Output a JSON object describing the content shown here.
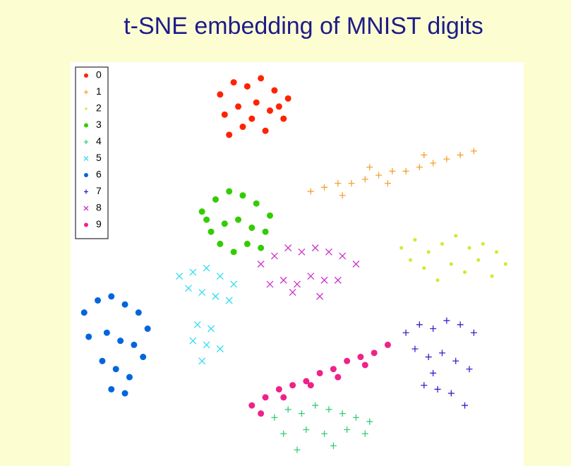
{
  "chart_data": {
    "type": "scatter",
    "title": "t-SNE embedding of MNIST digits",
    "xlim": [
      0,
      100
    ],
    "ylim": [
      0,
      100
    ],
    "series": [
      {
        "name": "0",
        "color": "#ff2200",
        "marker": "o",
        "x": [
          33,
          36,
          39,
          42,
          45,
          48,
          34,
          37,
          41,
          44,
          47,
          38,
          43,
          40,
          35,
          46
        ],
        "values": [
          92,
          95,
          94,
          96,
          93,
          91,
          87,
          89,
          90,
          88,
          86,
          84,
          83,
          86,
          82,
          89
        ]
      },
      {
        "name": "1",
        "color": "#f5a030",
        "marker": "+",
        "x": [
          53,
          56,
          59,
          62,
          65,
          68,
          71,
          74,
          77,
          80,
          83,
          86,
          89,
          60,
          70,
          78,
          66
        ],
        "values": [
          68,
          69,
          70,
          70,
          71,
          72,
          73,
          73,
          74,
          75,
          76,
          77,
          78,
          67,
          70,
          77,
          74
        ]
      },
      {
        "name": "2",
        "color": "#d4e82a",
        "marker": ".",
        "x": [
          73,
          76,
          79,
          82,
          85,
          88,
          91,
          94,
          96,
          78,
          84,
          90,
          81,
          87,
          75,
          93
        ],
        "values": [
          54,
          56,
          53,
          55,
          57,
          54,
          55,
          53,
          50,
          49,
          50,
          51,
          46,
          48,
          51,
          47
        ]
      },
      {
        "name": "3",
        "color": "#33cc00",
        "marker": "o",
        "x": [
          29,
          32,
          35,
          38,
          41,
          44,
          31,
          34,
          37,
          40,
          43,
          33,
          39,
          36,
          42,
          30
        ],
        "values": [
          63,
          66,
          68,
          67,
          65,
          62,
          58,
          60,
          61,
          59,
          58,
          55,
          55,
          53,
          54,
          61
        ]
      },
      {
        "name": "4",
        "color": "#33cc77",
        "marker": "+",
        "x": [
          45,
          48,
          51,
          54,
          57,
          60,
          63,
          66,
          47,
          52,
          56,
          61,
          65,
          50,
          58
        ],
        "values": [
          12,
          14,
          13,
          15,
          14,
          13,
          12,
          11,
          8,
          9,
          8,
          9,
          8,
          4,
          5
        ]
      },
      {
        "name": "5",
        "color": "#33ddee",
        "marker": "x",
        "x": [
          24,
          27,
          30,
          33,
          36,
          26,
          29,
          32,
          35,
          28,
          31,
          27,
          30,
          33,
          29
        ],
        "values": [
          47,
          48,
          49,
          47,
          45,
          44,
          43,
          42,
          41,
          35,
          34,
          31,
          30,
          29,
          26
        ]
      },
      {
        "name": "6",
        "color": "#0066dd",
        "marker": "o",
        "x": [
          3,
          6,
          9,
          12,
          15,
          17,
          4,
          8,
          11,
          14,
          16,
          7,
          10,
          13,
          9,
          12
        ],
        "values": [
          38,
          41,
          42,
          40,
          38,
          34,
          32,
          33,
          31,
          30,
          27,
          26,
          24,
          22,
          19,
          18
        ]
      },
      {
        "name": "7",
        "color": "#3322cc",
        "marker": "+",
        "x": [
          74,
          77,
          80,
          83,
          86,
          89,
          76,
          79,
          82,
          85,
          88,
          78,
          81,
          84,
          87,
          80
        ],
        "values": [
          33,
          35,
          34,
          36,
          35,
          33,
          29,
          27,
          28,
          26,
          24,
          20,
          19,
          18,
          15,
          23
        ]
      },
      {
        "name": "8",
        "color": "#cc33cc",
        "marker": "x",
        "x": [
          42,
          45,
          48,
          51,
          54,
          57,
          60,
          63,
          44,
          47,
          50,
          53,
          56,
          59,
          49,
          55
        ],
        "values": [
          50,
          52,
          54,
          53,
          54,
          53,
          52,
          50,
          45,
          46,
          45,
          47,
          46,
          46,
          43,
          42
        ]
      },
      {
        "name": "9",
        "color": "#ee2288",
        "marker": "o",
        "x": [
          40,
          43,
          46,
          49,
          52,
          55,
          58,
          61,
          64,
          67,
          70,
          42,
          47,
          53,
          59,
          65
        ],
        "values": [
          15,
          17,
          19,
          20,
          21,
          23,
          24,
          26,
          27,
          28,
          30,
          13,
          17,
          20,
          22,
          25
        ]
      }
    ]
  }
}
